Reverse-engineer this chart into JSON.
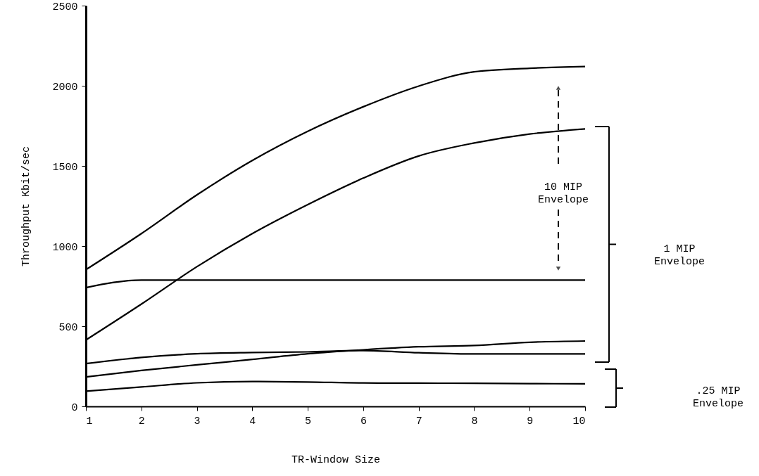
{
  "chart_data": {
    "type": "line",
    "xlabel": "TR-Window Size",
    "ylabel": "Throughput Kbit/sec",
    "x": [
      1,
      2,
      3,
      4,
      5,
      6,
      7,
      8,
      9,
      10
    ],
    "series": [
      {
        "color": "#000000",
        "values": [
          853,
          1078,
          1319,
          1534,
          1716,
          1869,
          1998,
          2087,
          2109,
          2120
        ]
      },
      {
        "color": "#000000",
        "values": [
          414,
          638,
          871,
          1078,
          1259,
          1424,
          1562,
          1643,
          1699,
          1731
        ]
      },
      {
        "color": "#000000",
        "values": [
          741,
          788,
          788,
          788,
          788,
          788,
          788,
          788,
          788,
          788
        ]
      },
      {
        "color": "#000000",
        "values": [
          267,
          305,
          328,
          336,
          340,
          348,
          335,
          327,
          327,
          327
        ]
      },
      {
        "color": "#000000",
        "values": [
          184,
          224,
          259,
          293,
          328,
          353,
          372,
          380,
          400,
          408
        ]
      },
      {
        "color": "#000000",
        "values": [
          95,
          121,
          147,
          155,
          152,
          146,
          145,
          144,
          142,
          141
        ]
      }
    ],
    "xlim": [
      1,
      10
    ],
    "xticks": [
      1,
      2,
      3,
      4,
      5,
      6,
      7,
      8,
      9,
      10
    ],
    "ylim": [
      0,
      2500
    ],
    "yticks": [
      0,
      500,
      1000,
      1500,
      2000,
      2500
    ],
    "grid": false,
    "marker": "none",
    "line_style": "solid",
    "annotations": [
      "10 MIP\nEnvelope",
      "1 MIP\nEnvelope",
      ".25 MIP\nEnvelope"
    ]
  }
}
